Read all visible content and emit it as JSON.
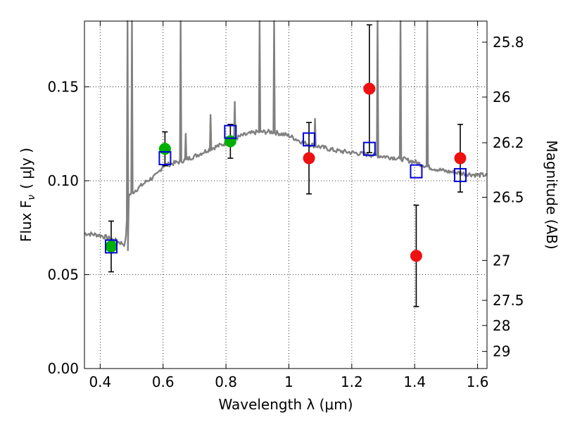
{
  "chart_data": {
    "type": "scatter",
    "xlabel": "Wavelength  λ (μm)",
    "ylabel": "Flux  F",
    "ylabel_subscript": "ν",
    "ylabel_unit": "( μJy )",
    "y2label": "Magnitude (AB)",
    "xlim": [
      0.35,
      1.63
    ],
    "ylim": [
      0.0,
      0.185
    ],
    "grid": true,
    "x_ticks": [
      0.4,
      0.6,
      0.8,
      1.0,
      1.2,
      1.4,
      1.6
    ],
    "x_tick_labels": [
      "0.4",
      "0.6",
      "0.8",
      "1",
      "1.2",
      "1.4",
      "1.6"
    ],
    "y_ticks": [
      0.0,
      0.05,
      0.1,
      0.15
    ],
    "y_tick_labels": [
      "0.00",
      "0.05",
      "0.10",
      "0.15"
    ],
    "y2_ticks": [
      {
        "label": "25.8",
        "mag": 25.8
      },
      {
        "label": "26",
        "mag": 26.0
      },
      {
        "label": "26.2",
        "mag": 26.2
      },
      {
        "label": "26.5",
        "mag": 26.5
      },
      {
        "label": "27",
        "mag": 27.0
      },
      {
        "label": "27.5",
        "mag": 27.5
      },
      {
        "label": "28",
        "mag": 28.0
      },
      {
        "label": "29",
        "mag": 29.0
      }
    ],
    "series": [
      {
        "marker": "circle",
        "color": "#00b000",
        "points": [
          {
            "x": 0.435,
            "y": 0.065,
            "yerr": 0.0135
          },
          {
            "x": 0.606,
            "y": 0.117,
            "yerr": 0.009
          },
          {
            "x": 0.814,
            "y": 0.121,
            "yerr": 0.009
          }
        ]
      },
      {
        "marker": "circle",
        "color": "#ee1111",
        "points": [
          {
            "x": 1.064,
            "y": 0.112,
            "yerr": 0.019
          },
          {
            "x": 1.256,
            "y": 0.149,
            "yerr": 0.034
          },
          {
            "x": 1.405,
            "y": 0.06,
            "yerr": 0.027
          },
          {
            "x": 1.545,
            "y": 0.112,
            "yerr": 0.018
          }
        ]
      },
      {
        "marker": "square-open",
        "color": "#0000dd",
        "points": [
          {
            "x": 0.435,
            "y": 0.065
          },
          {
            "x": 0.606,
            "y": 0.112
          },
          {
            "x": 0.814,
            "y": 0.126
          },
          {
            "x": 1.064,
            "y": 0.122
          },
          {
            "x": 1.256,
            "y": 0.117
          },
          {
            "x": 1.405,
            "y": 0.105
          },
          {
            "x": 1.545,
            "y": 0.103
          }
        ]
      }
    ],
    "model_spectrum": {
      "color": "#808080",
      "continuum": [
        [
          0.35,
          0.072
        ],
        [
          0.4,
          0.071
        ],
        [
          0.45,
          0.068
        ],
        [
          0.48,
          0.066
        ],
        [
          0.49,
          0.092
        ],
        [
          0.52,
          0.096
        ],
        [
          0.55,
          0.1
        ],
        [
          0.58,
          0.103
        ],
        [
          0.6,
          0.108
        ],
        [
          0.65,
          0.11
        ],
        [
          0.7,
          0.113
        ],
        [
          0.75,
          0.117
        ],
        [
          0.8,
          0.12
        ],
        [
          0.85,
          0.124
        ],
        [
          0.9,
          0.126
        ],
        [
          0.95,
          0.126
        ],
        [
          1.0,
          0.124
        ],
        [
          1.05,
          0.12
        ],
        [
          1.1,
          0.118
        ],
        [
          1.15,
          0.116
        ],
        [
          1.2,
          0.115
        ],
        [
          1.25,
          0.114
        ],
        [
          1.3,
          0.113
        ],
        [
          1.35,
          0.112
        ],
        [
          1.4,
          0.11
        ],
        [
          1.45,
          0.107
        ],
        [
          1.5,
          0.105
        ],
        [
          1.55,
          0.104
        ],
        [
          1.6,
          0.103
        ],
        [
          1.63,
          0.103
        ]
      ],
      "emission_lines": [
        {
          "x": 0.487,
          "peak": 0.19
        },
        {
          "x": 0.501,
          "peak": 0.19
        },
        {
          "x": 0.656,
          "peak": 0.19
        },
        {
          "x": 0.672,
          "peak": 0.125
        },
        {
          "x": 0.751,
          "peak": 0.135
        },
        {
          "x": 0.828,
          "peak": 0.142
        },
        {
          "x": 0.907,
          "peak": 0.19
        },
        {
          "x": 0.953,
          "peak": 0.19
        },
        {
          "x": 1.083,
          "peak": 0.133
        },
        {
          "x": 1.282,
          "peak": 0.19
        },
        {
          "x": 1.355,
          "peak": 0.19
        },
        {
          "x": 1.44,
          "peak": 0.19
        }
      ],
      "break": {
        "x": 0.488,
        "floor": 0.063
      }
    }
  }
}
